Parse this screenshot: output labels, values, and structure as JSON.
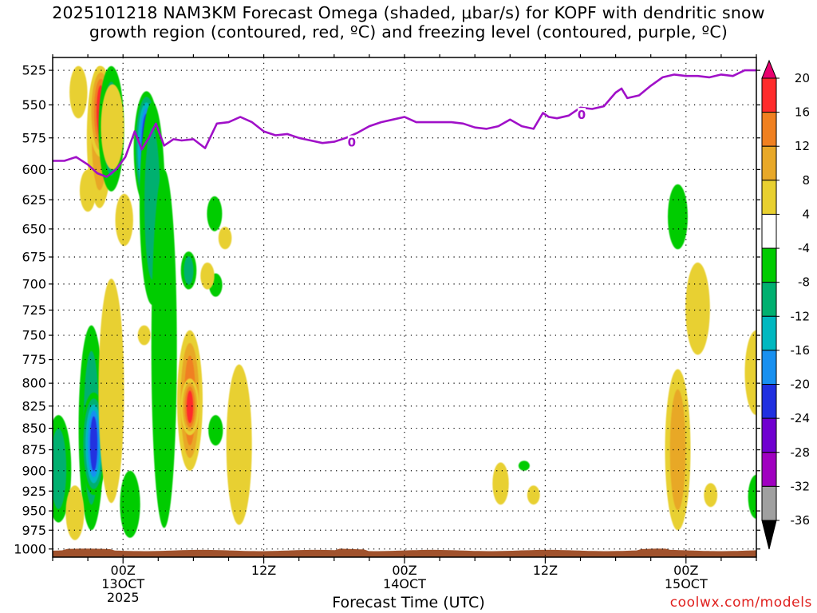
{
  "title": {
    "line1": "2025101218 NAM3KM Forecast Omega (shaded, μbar/s) for KOPF with dendritic snow",
    "line2": "growth region (contoured, red, ºC) and freezing level (contoured, purple, ºC)"
  },
  "credit": "coolwx.com/models",
  "chart_data": {
    "type": "heatmap",
    "xlabel": "Forecast Time (UTC)",
    "ylabel": "",
    "x_ticks": [
      {
        "hours": 6,
        "lines": [
          "00Z",
          "13OCT",
          "2025"
        ]
      },
      {
        "hours": 18,
        "lines": [
          "12Z"
        ]
      },
      {
        "hours": 30,
        "lines": [
          "00Z",
          "14OCT"
        ]
      },
      {
        "hours": 42,
        "lines": [
          "12Z"
        ]
      },
      {
        "hours": 54,
        "lines": [
          "00Z",
          "15OCT"
        ]
      }
    ],
    "xlim_hours": [
      0,
      60
    ],
    "y_ticks": [
      525,
      550,
      575,
      600,
      625,
      650,
      675,
      700,
      725,
      750,
      775,
      800,
      825,
      850,
      875,
      900,
      925,
      950,
      975,
      1000
    ],
    "ylim_hPa": [
      516,
      1011
    ],
    "y_scale": "log",
    "grid": true,
    "colorbar": {
      "levels": [
        20,
        16,
        12,
        8,
        4,
        -4,
        -8,
        -12,
        -16,
        -20,
        -24,
        -28,
        -32,
        -36
      ],
      "colors_top_to_bottom": [
        "#e8006e",
        "#ff2b2b",
        "#f08020",
        "#e8a828",
        "#e8d030",
        "#ffffff",
        "#00cc00",
        "#00b070",
        "#00b8c0",
        "#1890f0",
        "#2030e0",
        "#7000d0",
        "#a000c0",
        "#a0a0a0",
        "#000000"
      ]
    },
    "freezing_level": {
      "name": "0",
      "color": "#a010c8",
      "hours": [
        0,
        1,
        2,
        3,
        3.8,
        4.6,
        5.4,
        6.2,
        7,
        7.6,
        8.2,
        8.8,
        9.5,
        10.3,
        11,
        12,
        13,
        14,
        15,
        16,
        17,
        18,
        19,
        20,
        21,
        22,
        23,
        24,
        25,
        26,
        27,
        28,
        29,
        30,
        31,
        32,
        33,
        34,
        35,
        36,
        37,
        38,
        39,
        40,
        41,
        41.8,
        42.3,
        43,
        44,
        45,
        46,
        47,
        48,
        48.5,
        49,
        50,
        51,
        52,
        53,
        54,
        55,
        56,
        57,
        58,
        59,
        60
      ],
      "hPa": [
        593,
        593,
        590,
        596,
        603,
        606,
        600,
        590,
        570,
        584,
        575,
        564,
        581,
        576,
        577,
        576,
        583,
        564,
        563,
        559,
        563,
        570,
        573,
        572,
        575,
        577,
        579,
        578,
        575,
        571,
        566,
        563,
        561,
        559,
        563,
        563,
        563,
        563,
        564,
        567,
        568,
        566,
        561,
        566,
        568,
        556,
        559,
        560,
        558,
        552,
        553,
        551,
        541,
        538,
        545,
        543,
        536,
        530,
        528,
        529,
        529,
        530,
        528,
        529,
        525,
        525
      ],
      "labels": [
        {
          "hours": 25.5,
          "hPa": 578
        },
        {
          "hours": 45.1,
          "hPa": 557
        }
      ]
    },
    "omega_regions": [
      {
        "value": 10,
        "hours": 4.0,
        "p0": 522,
        "p1": 632
      },
      {
        "value": 20,
        "hours": 4.1,
        "p0": 522,
        "p1": 590
      },
      {
        "value": 6,
        "hours": 2.2,
        "p0": 522,
        "p1": 560
      },
      {
        "value": 6,
        "hours": 3.0,
        "p0": 600,
        "p1": 635
      },
      {
        "value": -10,
        "hours": 5.0,
        "p0": 522,
        "p1": 618
      },
      {
        "value": 6,
        "hours": 5.1,
        "p0": 535,
        "p1": 600
      },
      {
        "value": -28,
        "hours": 8.0,
        "p0": 540,
        "p1": 630
      },
      {
        "value": -10,
        "hours": 8.5,
        "p0": 548,
        "p1": 720
      },
      {
        "value": -6,
        "hours": 9.5,
        "p0": 600,
        "p1": 972
      },
      {
        "value": 6,
        "hours": 6.1,
        "p0": 620,
        "p1": 665
      },
      {
        "value": -10,
        "hours": 11.6,
        "p0": 670,
        "p1": 705
      },
      {
        "value": -6,
        "hours": 13.8,
        "p0": 622,
        "p1": 652
      },
      {
        "value": -6,
        "hours": 13.9,
        "p0": 690,
        "p1": 712
      },
      {
        "value": 6,
        "hours": 13.2,
        "p0": 680,
        "p1": 705
      },
      {
        "value": 6,
        "hours": 14.7,
        "p0": 648,
        "p1": 668
      },
      {
        "value": -12,
        "hours": 3.3,
        "p0": 740,
        "p1": 975
      },
      {
        "value": -22,
        "hours": 3.5,
        "p0": 810,
        "p1": 930
      },
      {
        "value": 8,
        "hours": 5.0,
        "p0": 695,
        "p1": 940
      },
      {
        "value": 6,
        "hours": 7.8,
        "p0": 740,
        "p1": 760
      },
      {
        "value": -8,
        "hours": 6.6,
        "p0": 900,
        "p1": 985
      },
      {
        "value": -12,
        "hours": 0.5,
        "p0": 835,
        "p1": 965
      },
      {
        "value": 6,
        "hours": 1.9,
        "p0": 918,
        "p1": 988
      },
      {
        "value": 14,
        "hours": 11.7,
        "p0": 745,
        "p1": 900
      },
      {
        "value": 20,
        "hours": 11.7,
        "p0": 795,
        "p1": 858
      },
      {
        "value": -6,
        "hours": 13.9,
        "p0": 835,
        "p1": 870
      },
      {
        "value": 8,
        "hours": 15.9,
        "p0": 780,
        "p1": 968
      },
      {
        "value": 6,
        "hours": 38.2,
        "p0": 890,
        "p1": 942
      },
      {
        "value": -6,
        "hours": 40.2,
        "p0": 888,
        "p1": 900
      },
      {
        "value": 6,
        "hours": 41.0,
        "p0": 918,
        "p1": 942
      },
      {
        "value": 10,
        "hours": 53.3,
        "p0": 785,
        "p1": 975
      },
      {
        "value": 6,
        "hours": 55.0,
        "p0": 680,
        "p1": 770
      },
      {
        "value": 6,
        "hours": 56.1,
        "p0": 915,
        "p1": 945
      },
      {
        "value": -6,
        "hours": 53.3,
        "p0": 612,
        "p1": 668
      },
      {
        "value": 6,
        "hours": 60.0,
        "p0": 745,
        "p1": 835
      },
      {
        "value": -8,
        "hours": 60.0,
        "p0": 905,
        "p1": 960
      }
    ]
  }
}
